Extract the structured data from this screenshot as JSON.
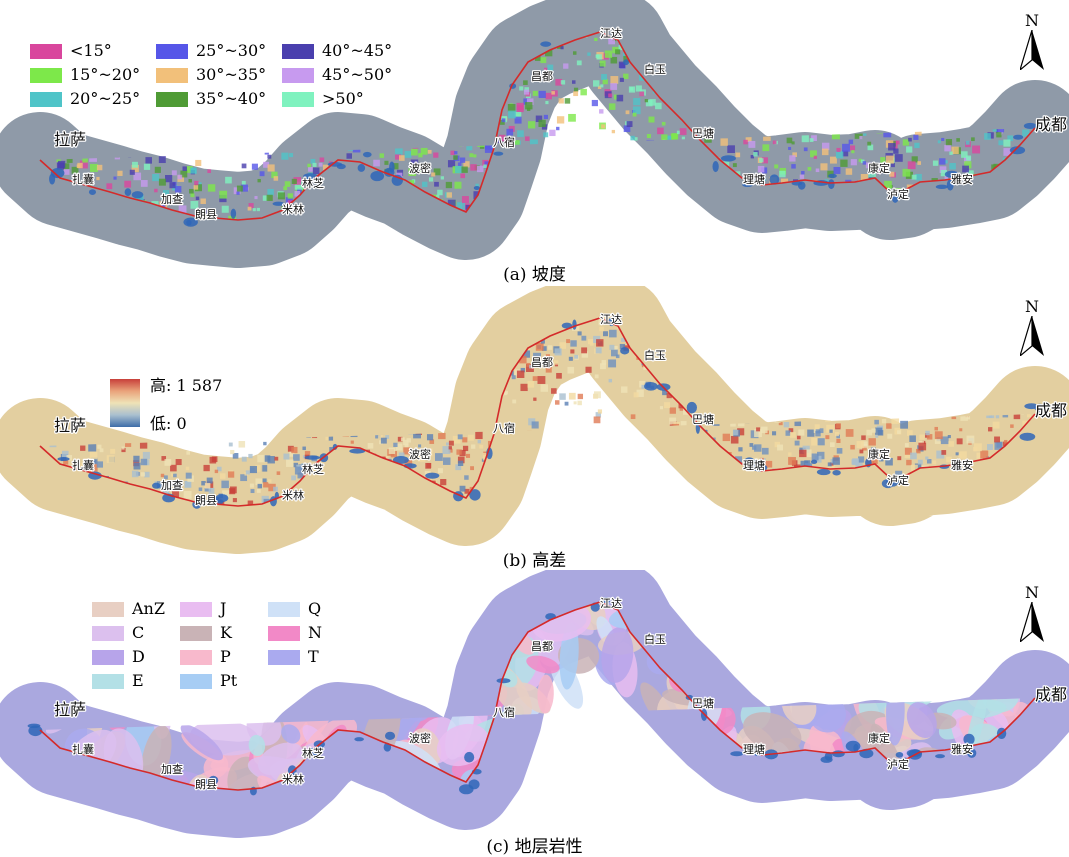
{
  "north_symbol": "N",
  "panels": [
    {
      "id": "a",
      "caption": "(a) 坡度",
      "legend": [
        {
          "label": "<15°",
          "color": "#d9469d"
        },
        {
          "label": "15°~20°",
          "color": "#7de84a"
        },
        {
          "label": "20°~25°",
          "color": "#4fc4c8"
        },
        {
          "label": "25°~30°",
          "color": "#5656e8"
        },
        {
          "label": "30°~35°",
          "color": "#f2c07a"
        },
        {
          "label": "35°~40°",
          "color": "#4f9b35"
        },
        {
          "label": "40°~45°",
          "color": "#4a3fae"
        },
        {
          "label": "45°~50°",
          "color": "#c79aef"
        },
        {
          "label": ">50°",
          "color": "#7ff2bf"
        }
      ],
      "base_color": "#8f9aa8",
      "accent_color": "#7cc65e"
    },
    {
      "id": "b",
      "caption": "(b) 高差",
      "ramp": {
        "high_label": "高: 1 587",
        "low_label": "低: 0",
        "high_color": "#c8403a",
        "low_color": "#3e6da8"
      },
      "base_color": "#e3cfa0",
      "accent_color": "#5a7fb5"
    },
    {
      "id": "c",
      "caption": "(c) 地层岩性",
      "legend": [
        {
          "label": "AnZ",
          "color": "#e8cfc3"
        },
        {
          "label": "C",
          "color": "#dcc0ee"
        },
        {
          "label": "D",
          "color": "#b7a4ea"
        },
        {
          "label": "E",
          "color": "#b3e0e6"
        },
        {
          "label": "J",
          "color": "#e9bdf1"
        },
        {
          "label": "K",
          "color": "#c9b3b6"
        },
        {
          "label": "P",
          "color": "#f8b9cc"
        },
        {
          "label": "Pt",
          "color": "#a7cdf4"
        },
        {
          "label": "Q",
          "color": "#cfe1f7"
        },
        {
          "label": "N",
          "color": "#f289c7"
        },
        {
          "label": "T",
          "color": "#aaaaef"
        }
      ],
      "base_color": "#aaa8df",
      "accent_color": "#d4b7c9"
    }
  ],
  "cities": [
    "拉萨",
    "扎囊",
    "加查",
    "朗县",
    "米林",
    "林芝",
    "波密",
    "八宿",
    "昌都",
    "江达",
    "白玉",
    "巴塘",
    "理塘",
    "康定",
    "泸定",
    "雅安",
    "成都"
  ],
  "route_color": "#d42a2a",
  "reservoir_color": "#2f66b8"
}
